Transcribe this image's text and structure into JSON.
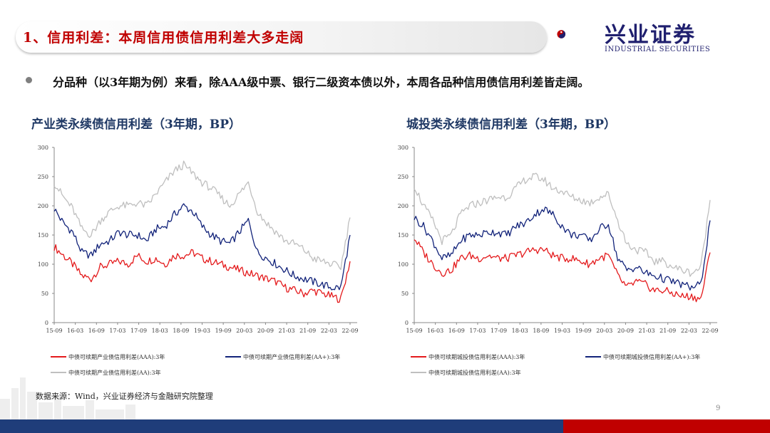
{
  "header": {
    "title": "1、信用利差：本周信用债信用利差大多走阔"
  },
  "logo": {
    "cn": "兴业证券",
    "en": "INDUSTRIAL SECURITIES"
  },
  "bullet": {
    "text": "分品种（以3年期为例）来看，除AAA级中票、银行二级资本债以外，本周各品种信用债信用利差皆走阔。"
  },
  "footer": {
    "source": "数据来源：Wind，兴业证券经济与金融研究院整理",
    "page": "9"
  },
  "colors": {
    "red": "#e41a1c",
    "navy": "#12237a",
    "gray": "#bfbfbf",
    "accent": "#c00000",
    "brand_blue": "#1f3d7a"
  },
  "chart_data": [
    {
      "type": "line",
      "title": "产业类永续债信用利差（3年期，BP）",
      "ylim": [
        0,
        300
      ],
      "yticks": [
        0,
        50,
        100,
        150,
        200,
        250,
        300
      ],
      "xticks": [
        "15-09",
        "16-03",
        "16-09",
        "17-03",
        "17-09",
        "18-03",
        "18-09",
        "19-03",
        "19-09",
        "20-03",
        "20-09",
        "21-03",
        "21-09",
        "22-03",
        "22-09"
      ],
      "series": [
        {
          "name": "中债可续期产业债信用利差(AAA):3年",
          "color": "#e41a1c",
          "values": [
            130,
            115,
            100,
            80,
            75,
            95,
            100,
            105,
            100,
            115,
            105,
            110,
            100,
            115,
            115,
            120,
            110,
            105,
            100,
            95,
            90,
            85,
            80,
            75,
            70,
            60,
            55,
            50,
            55,
            50,
            45,
            40,
            105
          ]
        },
        {
          "name": "中债可续期产业债信用利差(AA+):3年",
          "color": "#12237a",
          "values": [
            195,
            170,
            155,
            120,
            115,
            135,
            140,
            155,
            150,
            150,
            140,
            160,
            165,
            185,
            200,
            190,
            165,
            150,
            140,
            135,
            155,
            175,
            120,
            110,
            100,
            90,
            80,
            75,
            70,
            65,
            60,
            60,
            150
          ]
        },
        {
          "name": "中债可续期产业债信用利差(AA):3年",
          "color": "#bfbfbf",
          "values": [
            240,
            215,
            195,
            160,
            150,
            175,
            190,
            200,
            200,
            205,
            200,
            220,
            240,
            260,
            270,
            255,
            240,
            230,
            215,
            200,
            220,
            240,
            190,
            170,
            155,
            140,
            135,
            125,
            110,
            105,
            100,
            95,
            180
          ]
        }
      ]
    },
    {
      "type": "line",
      "title": "城投类永续债信用利差（3年期，BP）",
      "ylim": [
        0,
        300
      ],
      "yticks": [
        0,
        50,
        100,
        150,
        200,
        250,
        300
      ],
      "xticks": [
        "15-09",
        "16-03",
        "16-09",
        "17-03",
        "17-09",
        "18-03",
        "18-09",
        "19-03",
        "19-09",
        "20-03",
        "20-09",
        "21-03",
        "21-09",
        "22-03",
        "22-09"
      ],
      "series": [
        {
          "name": "中债可续期城投债信用利差(AAA):3年",
          "color": "#e41a1c",
          "values": [
            145,
            120,
            100,
            85,
            90,
            110,
            115,
            110,
            115,
            110,
            110,
            115,
            120,
            125,
            125,
            115,
            110,
            110,
            105,
            100,
            110,
            115,
            80,
            60,
            70,
            65,
            55,
            55,
            50,
            45,
            45,
            40,
            120
          ]
        },
        {
          "name": "中债可续期城投债信用利差(AA+):3年",
          "color": "#12237a",
          "values": [
            180,
            165,
            140,
            110,
            115,
            140,
            150,
            150,
            155,
            155,
            150,
            165,
            170,
            185,
            195,
            185,
            165,
            150,
            150,
            140,
            160,
            170,
            110,
            90,
            95,
            85,
            80,
            75,
            70,
            65,
            60,
            65,
            175
          ]
        },
        {
          "name": "中债可续期城投债信用利差(AA):3年",
          "color": "#bfbfbf",
          "values": [
            235,
            200,
            175,
            140,
            150,
            185,
            200,
            205,
            210,
            215,
            215,
            230,
            245,
            250,
            245,
            230,
            225,
            215,
            210,
            205,
            215,
            220,
            175,
            135,
            125,
            120,
            105,
            105,
            95,
            90,
            85,
            95,
            210
          ]
        }
      ]
    }
  ]
}
